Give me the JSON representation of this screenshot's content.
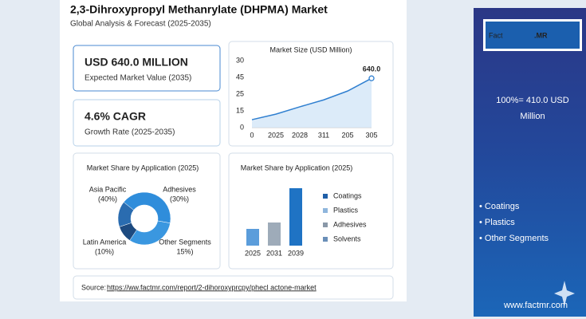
{
  "header": {
    "title": "2,3-Dihroxypropyl Methanrylate (DHPMA) Market",
    "subtitle": "Global Analysis & Forecast (2025-2035)"
  },
  "kpis": [
    {
      "value": "USD 640.0 MILLION",
      "label": "Expected Market Value (2035)",
      "color": "#1f5fa8"
    },
    {
      "value": "4.6% CAGR",
      "label": "Growth Rate (2025-2035)",
      "color": "#2e8b3a"
    }
  ],
  "chart_data": [
    {
      "type": "line",
      "title": "Market Size (USD Million)",
      "categories": [
        "0",
        "2025",
        "2028",
        "311",
        "205",
        "305"
      ],
      "y_labels": [
        "0",
        "15",
        "25",
        "45",
        "30"
      ],
      "values": [
        103,
        175,
        270,
        360,
        475,
        640
      ],
      "value_labels": [
        null,
        null,
        null,
        null,
        null,
        "640.0"
      ],
      "ylim": [
        0,
        870
      ],
      "color": "#2f7fd0"
    },
    {
      "type": "pie",
      "title": "Market Share by Application (2025)",
      "series": [
        {
          "name": "Asia Pacific",
          "value": 40,
          "value_label": "(40%)",
          "color": "#2f8ddb"
        },
        {
          "name": "Adhesives",
          "value": 30,
          "value_label": "(30%)",
          "color": "#3a97e0"
        },
        {
          "name": "Latin America",
          "value": 10,
          "value_label": "(10%)",
          "color": "#1d4a80"
        },
        {
          "name": "Other Segments",
          "value": 15,
          "value_label": "15%)",
          "color": "#2a6cb0"
        }
      ]
    },
    {
      "type": "bar",
      "title": "Market Share by Application (2025)",
      "categories": [
        "2025",
        "2031",
        "2039"
      ],
      "values": [
        21,
        29,
        72
      ],
      "colors": [
        "#5b9ddb",
        "#9eabb9",
        "#1f73c4"
      ],
      "legend": [
        {
          "name": "Coatings",
          "color": "#1f5fa8"
        },
        {
          "name": "Plastics",
          "color": "#8fb6dc"
        },
        {
          "name": "Adhesives",
          "color": "#8a98a8"
        },
        {
          "name": "Solvents",
          "color": "#6a8fb8"
        }
      ]
    }
  ],
  "source": {
    "label": "Source:",
    "link": "https://ww.factmr.com/report/2-dihoroxyprcpy/phecl actone-market"
  },
  "sidebar": {
    "logo_a": "Fact",
    "logo_b": ".MR",
    "note": [
      "100%= 410.0 USD",
      "Million"
    ],
    "bullets": [
      "• Coatings",
      "• Plastics",
      "• Other Segments"
    ],
    "website": "www.factmr.com"
  }
}
